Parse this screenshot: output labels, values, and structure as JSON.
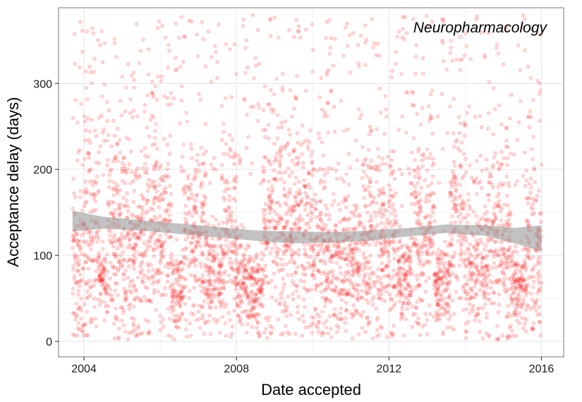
{
  "chart_data": {
    "type": "scatter",
    "title": "Neuropharmacology",
    "xlabel": "Date accepted",
    "ylabel": "Acceptance delay (days)",
    "x_scale": "date",
    "xlim": [
      "2003-05-01",
      "2016-08-01"
    ],
    "ylim": [
      -18,
      388
    ],
    "x_ticks": [
      "2004",
      "2008",
      "2012",
      "2016"
    ],
    "x_tick_values": [
      2004,
      2008,
      2012,
      2016
    ],
    "y_ticks": [
      "0",
      "100",
      "200",
      "300"
    ],
    "y_tick_values": [
      0,
      100,
      200,
      300
    ],
    "grid": true,
    "legend": "none",
    "point_color": "#ff0000",
    "point_opacity": 0.15,
    "smooth_color": "#999999",
    "smooth": {
      "x": [
        2003.7,
        2004.5,
        2005.5,
        2006.5,
        2007.5,
        2008.5,
        2009.5,
        2010.5,
        2011.5,
        2012.5,
        2013.5,
        2014.5,
        2015.3,
        2016.0
      ],
      "y": [
        140,
        138,
        135,
        131,
        127,
        123,
        121,
        121,
        123,
        127,
        131,
        129,
        123,
        120
      ],
      "ymin": [
        128,
        131,
        129,
        125,
        121,
        117,
        114,
        115,
        117,
        122,
        126,
        123,
        114,
        105
      ],
      "ymax": [
        152,
        145,
        141,
        137,
        133,
        129,
        128,
        127,
        129,
        132,
        136,
        135,
        132,
        135
      ]
    },
    "series": [
      {
        "density": [
          [
            2003.7,
            2004.0,
            95,
            55
          ],
          [
            2004.0,
            2004.4,
            110,
            60
          ],
          [
            2004.4,
            2004.6,
            75,
            20
          ],
          [
            2004.6,
            2005.0,
            120,
            65
          ],
          [
            2005.0,
            2005.6,
            105,
            60
          ],
          [
            2005.6,
            2006.0,
            130,
            65
          ],
          [
            2006.0,
            2006.3,
            115,
            55
          ],
          [
            2006.3,
            2006.6,
            55,
            25
          ],
          [
            2006.6,
            2007.2,
            110,
            60
          ],
          [
            2007.2,
            2007.6,
            80,
            30
          ],
          [
            2007.6,
            2008.0,
            120,
            60
          ],
          [
            2008.0,
            2008.4,
            70,
            25
          ],
          [
            2008.4,
            2008.7,
            60,
            25
          ],
          [
            2008.7,
            2009.2,
            140,
            65
          ],
          [
            2009.2,
            2010.0,
            120,
            60
          ],
          [
            2010.0,
            2010.6,
            100,
            55
          ],
          [
            2010.6,
            2011.2,
            95,
            45
          ],
          [
            2011.2,
            2011.8,
            110,
            55
          ],
          [
            2011.8,
            2012.2,
            110,
            55
          ],
          [
            2012.2,
            2012.6,
            75,
            25
          ],
          [
            2012.6,
            2013.2,
            130,
            60
          ],
          [
            2013.2,
            2013.6,
            70,
            25
          ],
          [
            2013.6,
            2014.0,
            140,
            55
          ],
          [
            2014.0,
            2014.6,
            95,
            40
          ],
          [
            2014.6,
            2015.2,
            110,
            55
          ],
          [
            2015.2,
            2015.6,
            60,
            25
          ],
          [
            2015.6,
            2016.0,
            100,
            50
          ]
        ]
      }
    ]
  }
}
